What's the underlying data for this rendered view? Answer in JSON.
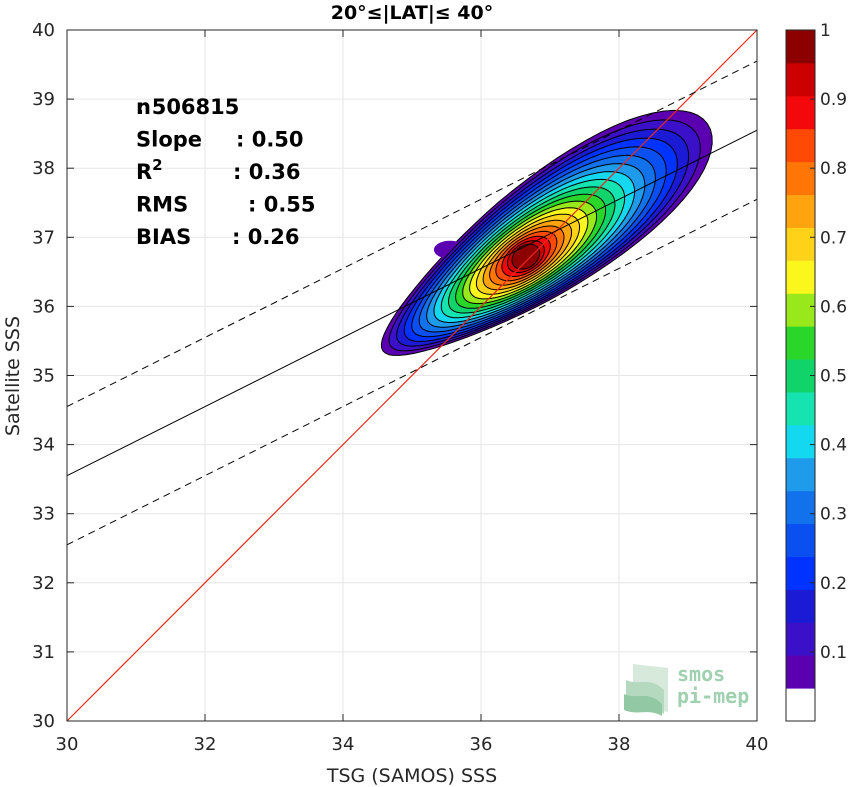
{
  "chart_data": {
    "type": "scatter",
    "title": "20°≤|LAT|≤ 40°",
    "xlabel": "TSG (SAMOS) SSS",
    "ylabel": "Satellite SSS",
    "xlim": [
      30,
      40
    ],
    "ylim": [
      30,
      40
    ],
    "xticks": [
      "30",
      "32",
      "34",
      "36",
      "38",
      "40"
    ],
    "yticks": [
      "30",
      "31",
      "32",
      "33",
      "34",
      "35",
      "36",
      "37",
      "38",
      "39",
      "40"
    ],
    "grid": true,
    "stats": [
      {
        "label": "n",
        "value": ": 506815"
      },
      {
        "label": "Slope",
        "value": ": 0.50"
      },
      {
        "label": "R",
        "sup": "2",
        "value": ": 0.36"
      },
      {
        "label": "RMS",
        "value": ": 0.55"
      },
      {
        "label": "BIAS",
        "value": ": 0.26"
      }
    ],
    "lines": {
      "identity": {
        "slope": 1,
        "intercept": 0,
        "color": "#e8291c"
      },
      "fit": {
        "slope": 0.5,
        "intercept": 18.55,
        "color": "#000000"
      },
      "fit_offsets": [
        1,
        -1
      ]
    },
    "density_contours": {
      "center": [
        36.65,
        36.72
      ],
      "peak": 1.0,
      "levels": [
        0.05,
        0.1,
        0.15,
        0.2,
        0.25,
        0.3,
        0.35,
        0.4,
        0.45,
        0.5,
        0.55,
        0.6,
        0.65,
        0.7,
        0.75,
        0.8,
        0.85,
        0.9,
        0.95,
        1.0
      ]
    },
    "colorbar": {
      "range": [
        0,
        1
      ],
      "ticks": [
        "0.1",
        "0.2",
        "0.3",
        "0.4",
        "0.5",
        "0.6",
        "0.7",
        "0.8",
        "0.9",
        "1"
      ],
      "colors": [
        "#ffffff",
        "#5a00b0",
        "#3a10c8",
        "#1b1bd6",
        "#0033ff",
        "#0a50f0",
        "#1272ec",
        "#1e9bea",
        "#14d8f0",
        "#16e4b0",
        "#10d36a",
        "#2ad62a",
        "#98e81c",
        "#fbf61c",
        "#ffd21a",
        "#ffa40f",
        "#ff7607",
        "#ff4a05",
        "#f3080b",
        "#cc0000",
        "#8c0000"
      ]
    }
  },
  "logo": {
    "line1": "smos",
    "line2": "pi-mep"
  }
}
